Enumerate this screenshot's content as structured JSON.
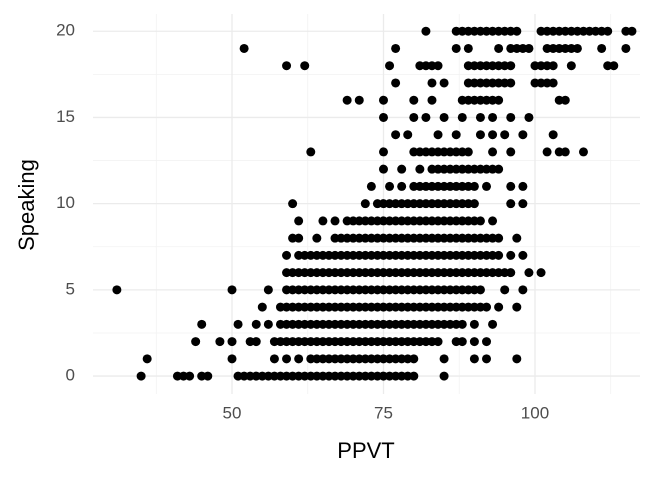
{
  "chart_data": {
    "type": "scatter",
    "x_label": "PPVT",
    "y_label": "Speaking",
    "color": "#000000",
    "grid": true,
    "xlim": [
      27.06,
      117.33
    ],
    "ylim": [
      -1.04,
      21
    ],
    "xticks": [
      50,
      75,
      100
    ],
    "yticks": [
      0,
      5,
      10,
      15,
      20
    ],
    "x": [
      35,
      41,
      42,
      43,
      45,
      46,
      51,
      52,
      53,
      54,
      55,
      56,
      57,
      58,
      59,
      60,
      61,
      62,
      63,
      64,
      65,
      66,
      67,
      68,
      69,
      70,
      71,
      72,
      73,
      74,
      75,
      76,
      77,
      78,
      79,
      80,
      85,
      36,
      50,
      57,
      59,
      61,
      63,
      64,
      65,
      66,
      67,
      68,
      69,
      70,
      71,
      72,
      73,
      74,
      75,
      76,
      77,
      78,
      79,
      80,
      85,
      90,
      92,
      97,
      44,
      48,
      50,
      53,
      54,
      57,
      58,
      59,
      60,
      61,
      62,
      63,
      64,
      65,
      66,
      67,
      68,
      69,
      70,
      71,
      72,
      73,
      74,
      75,
      76,
      77,
      78,
      79,
      80,
      81,
      82,
      83,
      84,
      87,
      88,
      90,
      92,
      45,
      51,
      54,
      56,
      58,
      59,
      60,
      61,
      62,
      63,
      64,
      65,
      66,
      67,
      68,
      69,
      70,
      71,
      72,
      73,
      74,
      75,
      76,
      77,
      78,
      79,
      80,
      81,
      82,
      83,
      84,
      85,
      86,
      87,
      88,
      90,
      93,
      55,
      58,
      59,
      60,
      61,
      62,
      63,
      64,
      65,
      66,
      67,
      68,
      69,
      70,
      71,
      72,
      73,
      74,
      75,
      76,
      77,
      78,
      79,
      80,
      81,
      82,
      83,
      84,
      85,
      86,
      87,
      88,
      89,
      90,
      91,
      92,
      94,
      97,
      31,
      50,
      56,
      59,
      60,
      61,
      62,
      63,
      64,
      65,
      66,
      67,
      68,
      69,
      70,
      71,
      72,
      73,
      74,
      75,
      76,
      77,
      78,
      79,
      80,
      81,
      82,
      83,
      84,
      85,
      86,
      87,
      88,
      89,
      90,
      91,
      95,
      98,
      59,
      60,
      61,
      62,
      63,
      64,
      65,
      66,
      67,
      68,
      69,
      70,
      71,
      72,
      73,
      74,
      75,
      76,
      77,
      78,
      79,
      80,
      81,
      82,
      83,
      84,
      85,
      86,
      87,
      88,
      89,
      90,
      91,
      92,
      93,
      94,
      95,
      96,
      99,
      101,
      59,
      61,
      62,
      63,
      64,
      65,
      66,
      67,
      68,
      69,
      70,
      71,
      72,
      73,
      74,
      75,
      76,
      77,
      78,
      79,
      80,
      81,
      82,
      83,
      84,
      85,
      86,
      87,
      88,
      89,
      90,
      91,
      92,
      93,
      94,
      96,
      98,
      60,
      61,
      64,
      67,
      68,
      69,
      70,
      71,
      72,
      73,
      74,
      75,
      76,
      77,
      78,
      79,
      80,
      81,
      82,
      83,
      84,
      85,
      86,
      87,
      88,
      89,
      90,
      91,
      92,
      93,
      94,
      97,
      61,
      65,
      67,
      69,
      70,
      71,
      72,
      73,
      74,
      75,
      76,
      77,
      78,
      79,
      80,
      81,
      82,
      83,
      84,
      85,
      86,
      87,
      88,
      89,
      90,
      91,
      93,
      60,
      72,
      74,
      75,
      76,
      77,
      78,
      79,
      80,
      81,
      82,
      83,
      84,
      85,
      86,
      87,
      88,
      89,
      90,
      96,
      98,
      73,
      76,
      78,
      80,
      81,
      82,
      83,
      84,
      85,
      86,
      87,
      88,
      89,
      90,
      92,
      96,
      98,
      75,
      78,
      81,
      83,
      84,
      85,
      86,
      87,
      88,
      89,
      90,
      91,
      92,
      93,
      94,
      63,
      75,
      80,
      81,
      82,
      83,
      84,
      85,
      86,
      87,
      88,
      89,
      93,
      96,
      102,
      104,
      105,
      108,
      77,
      79,
      84,
      87,
      91,
      93,
      95,
      98,
      103,
      75,
      80,
      82,
      85,
      88,
      91,
      93,
      96,
      99,
      69,
      71,
      75,
      80,
      83,
      88,
      89,
      90,
      91,
      92,
      93,
      94,
      104,
      105,
      77,
      83,
      85,
      89,
      90,
      91,
      92,
      93,
      94,
      95,
      96,
      100,
      101,
      102,
      103,
      59,
      62,
      76,
      81,
      82,
      83,
      84,
      89,
      90,
      91,
      92,
      93,
      94,
      95,
      96,
      100,
      101,
      102,
      103,
      106,
      112,
      113,
      52,
      77,
      87,
      89,
      94,
      96,
      97,
      98,
      99,
      102,
      103,
      104,
      105,
      106,
      107,
      111,
      115,
      82,
      87,
      88,
      89,
      90,
      91,
      92,
      93,
      94,
      95,
      96,
      97,
      101,
      102,
      103,
      104,
      105,
      106,
      107,
      108,
      109,
      110,
      111,
      112,
      115,
      116
    ],
    "values": [
      0,
      0,
      0,
      0,
      0,
      0,
      0,
      0,
      0,
      0,
      0,
      0,
      0,
      0,
      0,
      0,
      0,
      0,
      0,
      0,
      0,
      0,
      0,
      0,
      0,
      0,
      0,
      0,
      0,
      0,
      0,
      0,
      0,
      0,
      0,
      0,
      0,
      1,
      1,
      1,
      1,
      1,
      1,
      1,
      1,
      1,
      1,
      1,
      1,
      1,
      1,
      1,
      1,
      1,
      1,
      1,
      1,
      1,
      1,
      1,
      1,
      1,
      1,
      1,
      2,
      2,
      2,
      2,
      2,
      2,
      2,
      2,
      2,
      2,
      2,
      2,
      2,
      2,
      2,
      2,
      2,
      2,
      2,
      2,
      2,
      2,
      2,
      2,
      2,
      2,
      2,
      2,
      2,
      2,
      2,
      2,
      2,
      2,
      2,
      2,
      2,
      3,
      3,
      3,
      3,
      3,
      3,
      3,
      3,
      3,
      3,
      3,
      3,
      3,
      3,
      3,
      3,
      3,
      3,
      3,
      3,
      3,
      3,
      3,
      3,
      3,
      3,
      3,
      3,
      3,
      3,
      3,
      3,
      3,
      3,
      3,
      3,
      3,
      4,
      4,
      4,
      4,
      4,
      4,
      4,
      4,
      4,
      4,
      4,
      4,
      4,
      4,
      4,
      4,
      4,
      4,
      4,
      4,
      4,
      4,
      4,
      4,
      4,
      4,
      4,
      4,
      4,
      4,
      4,
      4,
      4,
      4,
      4,
      4,
      4,
      4,
      5,
      5,
      5,
      5,
      5,
      5,
      5,
      5,
      5,
      5,
      5,
      5,
      5,
      5,
      5,
      5,
      5,
      5,
      5,
      5,
      5,
      5,
      5,
      5,
      5,
      5,
      5,
      5,
      5,
      5,
      5,
      5,
      5,
      5,
      5,
      5,
      5,
      5,
      6,
      6,
      6,
      6,
      6,
      6,
      6,
      6,
      6,
      6,
      6,
      6,
      6,
      6,
      6,
      6,
      6,
      6,
      6,
      6,
      6,
      6,
      6,
      6,
      6,
      6,
      6,
      6,
      6,
      6,
      6,
      6,
      6,
      6,
      6,
      6,
      6,
      6,
      6,
      6,
      7,
      7,
      7,
      7,
      7,
      7,
      7,
      7,
      7,
      7,
      7,
      7,
      7,
      7,
      7,
      7,
      7,
      7,
      7,
      7,
      7,
      7,
      7,
      7,
      7,
      7,
      7,
      7,
      7,
      7,
      7,
      7,
      7,
      7,
      7,
      7,
      7,
      8,
      8,
      8,
      8,
      8,
      8,
      8,
      8,
      8,
      8,
      8,
      8,
      8,
      8,
      8,
      8,
      8,
      8,
      8,
      8,
      8,
      8,
      8,
      8,
      8,
      8,
      8,
      8,
      8,
      8,
      8,
      8,
      9,
      9,
      9,
      9,
      9,
      9,
      9,
      9,
      9,
      9,
      9,
      9,
      9,
      9,
      9,
      9,
      9,
      9,
      9,
      9,
      9,
      9,
      9,
      9,
      9,
      9,
      9,
      10,
      10,
      10,
      10,
      10,
      10,
      10,
      10,
      10,
      10,
      10,
      10,
      10,
      10,
      10,
      10,
      10,
      10,
      10,
      10,
      10,
      11,
      11,
      11,
      11,
      11,
      11,
      11,
      11,
      11,
      11,
      11,
      11,
      11,
      11,
      11,
      11,
      11,
      12,
      12,
      12,
      12,
      12,
      12,
      12,
      12,
      12,
      12,
      12,
      12,
      12,
      12,
      12,
      13,
      13,
      13,
      13,
      13,
      13,
      13,
      13,
      13,
      13,
      13,
      13,
      13,
      13,
      13,
      13,
      13,
      13,
      14,
      14,
      14,
      14,
      14,
      14,
      14,
      14,
      14,
      15,
      15,
      15,
      15,
      15,
      15,
      15,
      15,
      15,
      16,
      16,
      16,
      16,
      16,
      16,
      16,
      16,
      16,
      16,
      16,
      16,
      16,
      16,
      17,
      17,
      17,
      17,
      17,
      17,
      17,
      17,
      17,
      17,
      17,
      17,
      17,
      17,
      17,
      18,
      18,
      18,
      18,
      18,
      18,
      18,
      18,
      18,
      18,
      18,
      18,
      18,
      18,
      18,
      18,
      18,
      18,
      18,
      18,
      18,
      18,
      19,
      19,
      19,
      19,
      19,
      19,
      19,
      19,
      19,
      19,
      19,
      19,
      19,
      19,
      19,
      19,
      19,
      20,
      20,
      20,
      20,
      20,
      20,
      20,
      20,
      20,
      20,
      20,
      20,
      20,
      20,
      20,
      20,
      20,
      20,
      20,
      20,
      20,
      20,
      20,
      20,
      20,
      20
    ]
  }
}
